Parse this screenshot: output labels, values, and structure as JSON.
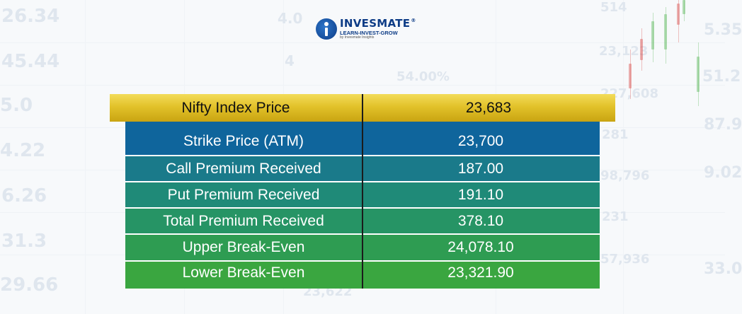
{
  "logo": {
    "brand": "INVESMATE",
    "registered": "®",
    "tagline": "LEARN-INVEST-GROW",
    "sub": "by Invesmate Insights"
  },
  "background_numbers": [
    "26.34",
    "45.44",
    "5.0",
    "4.22",
    "6.26",
    "31.3",
    "29.66",
    "4.0",
    "4",
    "54.00%",
    "514",
    "23,123",
    "227,608",
    "281",
    "98,796",
    "231",
    "57,936",
    "5.35",
    "51.2",
    "87.9",
    "9.02",
    "33.0",
    "23,622"
  ],
  "table": {
    "header": {
      "label": "Nifty Index Price",
      "value": "23,683"
    },
    "rows": [
      {
        "label": "Strike Price (ATM)",
        "value": "23,700",
        "color": "#0f659c"
      },
      {
        "label": "Call Premium Received",
        "value": "187.00",
        "color": "#1a7a8a"
      },
      {
        "label": "Put Premium Received",
        "value": "191.10",
        "color": "#1f8a78"
      },
      {
        "label": "Total Premium Received",
        "value": "378.10",
        "color": "#269465"
      },
      {
        "label": "Upper Break-Even",
        "value": "24,078.10",
        "color": "#2e9c52"
      },
      {
        "label": "Lower Break-Even",
        "value": "23,321.90",
        "color": "#3aa640"
      }
    ]
  }
}
